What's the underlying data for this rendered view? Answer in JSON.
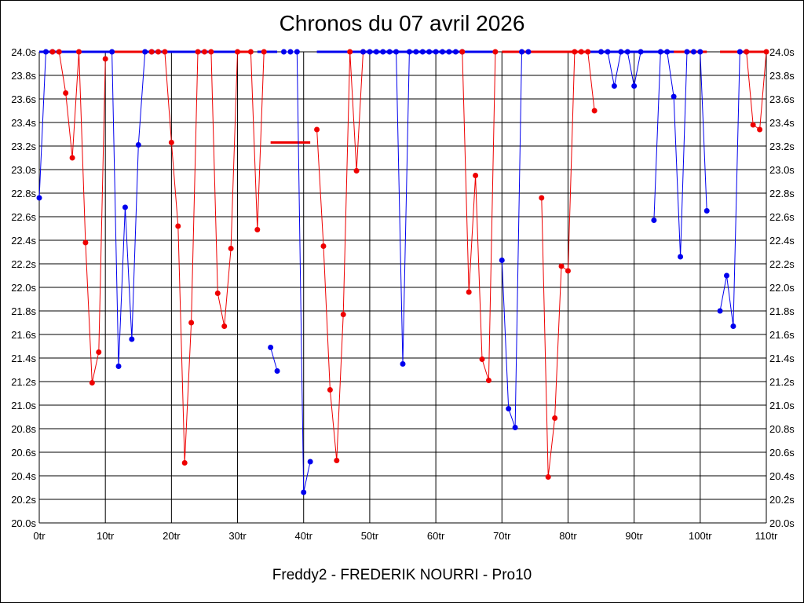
{
  "chart_data": {
    "type": "line",
    "title": "Chronos du 07 avril 2026",
    "footer": "Freddy2 - FREDERIK NOURRI - Pro10",
    "xlabel": "",
    "ylabel": "",
    "xlim": [
      0,
      110
    ],
    "ylim": [
      20.0,
      24.0
    ],
    "x_ticks": [
      0,
      10,
      20,
      30,
      40,
      50,
      60,
      70,
      80,
      90,
      100,
      110
    ],
    "x_tick_labels": [
      "0tr",
      "10tr",
      "20tr",
      "30tr",
      "40tr",
      "50tr",
      "60tr",
      "70tr",
      "80tr",
      "90tr",
      "100tr",
      "110tr"
    ],
    "y_ticks": [
      20.0,
      20.2,
      20.4,
      20.6,
      20.8,
      21.0,
      21.2,
      21.4,
      21.6,
      21.8,
      22.0,
      22.2,
      22.4,
      22.6,
      22.8,
      23.0,
      23.2,
      23.4,
      23.6,
      23.8,
      24.0
    ],
    "y_tick_labels": [
      "20.0s",
      "20.2s",
      "20.4s",
      "20.6s",
      "20.8s",
      "21.0s",
      "21.2s",
      "21.4s",
      "21.6s",
      "21.8s",
      "22.0s",
      "22.2s",
      "22.4s",
      "22.6s",
      "22.8s",
      "23.0s",
      "23.2s",
      "23.4s",
      "23.6s",
      "23.8s",
      "24.0s"
    ],
    "grid": true,
    "colors": {
      "blue": "#0000ee",
      "red": "#ee0000"
    },
    "capped_segments": [
      {
        "color": "blue",
        "x": [
          0,
          11
        ]
      },
      {
        "color": "red",
        "x": [
          11,
          16
        ]
      },
      {
        "color": "blue",
        "x": [
          16,
          30
        ]
      },
      {
        "color": "red",
        "x": [
          30,
          32
        ]
      },
      {
        "color": "blue",
        "x": [
          33,
          36
        ]
      },
      {
        "color": "blue",
        "x": [
          42,
          47
        ]
      },
      {
        "color": "blue",
        "x": [
          47,
          69
        ]
      },
      {
        "color": "red",
        "x": [
          70,
          83
        ]
      },
      {
        "color": "blue",
        "x": [
          83,
          86
        ]
      },
      {
        "color": "blue",
        "x": [
          86,
          97
        ]
      },
      {
        "color": "red",
        "x": [
          96,
          101
        ]
      },
      {
        "color": "red",
        "x": [
          103,
          110
        ]
      }
    ],
    "flat_segments": [
      {
        "color": "red",
        "x": [
          35,
          41
        ],
        "y": 23.23
      }
    ],
    "series": [
      {
        "color": "blue",
        "points": [
          [
            0,
            22.76
          ],
          [
            1,
            24.0
          ],
          [
            2,
            24.0
          ]
        ]
      },
      {
        "color": "red",
        "points": [
          [
            2,
            24.0
          ],
          [
            3,
            24.0
          ],
          [
            4,
            23.65
          ],
          [
            5,
            23.1
          ],
          [
            6,
            24.0
          ],
          [
            7,
            22.38
          ],
          [
            8,
            21.19
          ],
          [
            9,
            21.45
          ],
          [
            10,
            23.94
          ]
        ]
      },
      {
        "color": "blue",
        "points": [
          [
            11,
            24.0
          ],
          [
            12,
            21.33
          ],
          [
            13,
            22.68
          ],
          [
            14,
            21.56
          ],
          [
            15,
            23.21
          ],
          [
            16,
            24.0
          ],
          [
            17,
            24.0
          ]
        ]
      },
      {
        "color": "red",
        "points": [
          [
            17,
            24.0
          ],
          [
            18,
            24.0
          ],
          [
            19,
            24.0
          ],
          [
            20,
            23.23
          ],
          [
            21,
            22.52
          ],
          [
            22,
            20.51
          ],
          [
            23,
            21.7
          ],
          [
            24,
            24.0
          ],
          [
            25,
            24.0
          ],
          [
            26,
            24.0
          ],
          [
            27,
            21.95
          ],
          [
            28,
            21.67
          ],
          [
            29,
            22.33
          ],
          [
            30,
            24.0
          ]
        ]
      },
      {
        "color": "red",
        "points": [
          [
            32,
            24.0
          ],
          [
            33,
            22.49
          ],
          [
            34,
            24.0
          ]
        ]
      },
      {
        "color": "blue",
        "points": [
          [
            35,
            21.49
          ],
          [
            36,
            21.29
          ]
        ]
      },
      {
        "color": "blue",
        "points": [
          [
            37,
            24.0
          ],
          [
            38,
            24.0
          ],
          [
            39,
            24.0
          ],
          [
            40,
            20.26
          ],
          [
            41,
            20.52
          ]
        ]
      },
      {
        "color": "red",
        "points": [
          [
            42,
            23.34
          ],
          [
            43,
            22.35
          ],
          [
            44,
            21.13
          ],
          [
            45,
            20.53
          ],
          [
            46,
            21.77
          ],
          [
            47,
            24.0
          ],
          [
            48,
            22.99
          ],
          [
            49,
            24.0
          ]
        ]
      },
      {
        "color": "blue",
        "points": [
          [
            49,
            24.0
          ],
          [
            50,
            24.0
          ],
          [
            51,
            24.0
          ],
          [
            52,
            24.0
          ],
          [
            53,
            24.0
          ],
          [
            54,
            24.0
          ],
          [
            55,
            21.35
          ],
          [
            56,
            24.0
          ],
          [
            57,
            24.0
          ],
          [
            58,
            24.0
          ],
          [
            59,
            24.0
          ],
          [
            60,
            24.0
          ],
          [
            61,
            24.0
          ],
          [
            62,
            24.0
          ],
          [
            63,
            24.0
          ],
          [
            64,
            24.0
          ]
        ]
      },
      {
        "color": "red",
        "points": [
          [
            64,
            24.0
          ],
          [
            65,
            21.96
          ],
          [
            66,
            22.95
          ],
          [
            67,
            21.39
          ],
          [
            68,
            21.21
          ],
          [
            69,
            24.0
          ]
        ]
      },
      {
        "color": "blue",
        "points": [
          [
            70,
            22.23
          ],
          [
            71,
            20.97
          ],
          [
            72,
            20.81
          ],
          [
            73,
            24.0
          ],
          [
            74,
            24.0
          ]
        ]
      },
      {
        "color": "red",
        "points": [
          [
            76,
            22.76
          ],
          [
            77,
            20.39
          ],
          [
            78,
            20.89
          ],
          [
            79,
            22.18
          ],
          [
            80,
            22.14
          ],
          [
            81,
            24.0
          ],
          [
            82,
            24.0
          ],
          [
            83,
            24.0
          ],
          [
            84,
            23.5
          ]
        ]
      },
      {
        "color": "blue",
        "points": [
          [
            85,
            24.0
          ],
          [
            86,
            24.0
          ],
          [
            87,
            23.71
          ],
          [
            88,
            24.0
          ],
          [
            89,
            24.0
          ],
          [
            90,
            23.71
          ],
          [
            91,
            24.0
          ]
        ]
      },
      {
        "color": "blue",
        "points": [
          [
            93,
            22.57
          ],
          [
            94,
            24.0
          ],
          [
            95,
            24.0
          ],
          [
            96,
            23.62
          ],
          [
            97,
            22.26
          ],
          [
            98,
            24.0
          ],
          [
            99,
            24.0
          ],
          [
            100,
            24.0
          ],
          [
            101,
            22.65
          ]
        ]
      },
      {
        "color": "blue",
        "points": [
          [
            103,
            21.8
          ],
          [
            104,
            22.1
          ],
          [
            105,
            21.67
          ],
          [
            106,
            24.0
          ],
          [
            107,
            24.0
          ]
        ]
      },
      {
        "color": "red",
        "points": [
          [
            107,
            24.0
          ],
          [
            108,
            23.38
          ],
          [
            109,
            23.34
          ],
          [
            110,
            24.0
          ]
        ]
      }
    ]
  }
}
